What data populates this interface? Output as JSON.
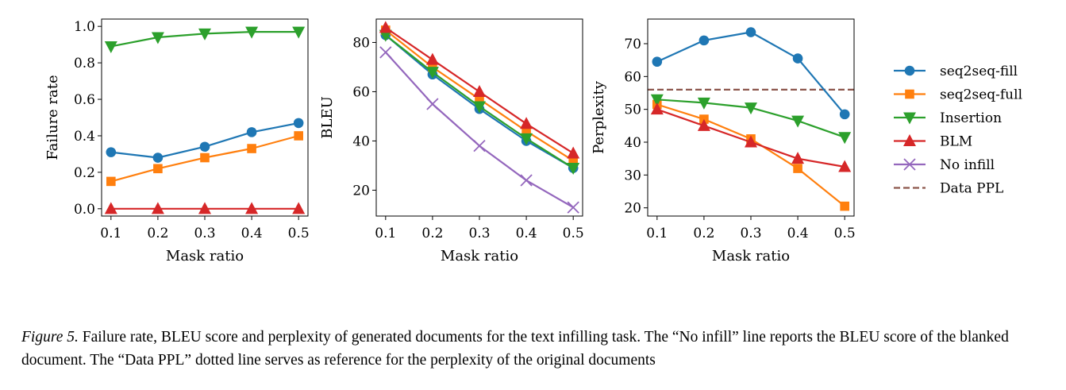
{
  "series_styles": {
    "seq2seq-fill": {
      "color": "#1f77b4",
      "marker": "circle",
      "dash": false
    },
    "seq2seq-full": {
      "color": "#ff7f0e",
      "marker": "square",
      "dash": false
    },
    "Insertion": {
      "color": "#2ca02c",
      "marker": "triangle-down",
      "dash": false
    },
    "BLM": {
      "color": "#d62728",
      "marker": "triangle-up",
      "dash": false
    },
    "No infill": {
      "color": "#9467bd",
      "marker": "x",
      "dash": false
    },
    "Data PPL": {
      "color": "#8c564b",
      "marker": "none",
      "dash": true
    }
  },
  "legend": {
    "placement": "right, outside plots",
    "entries": [
      "seq2seq-fill",
      "seq2seq-full",
      "Insertion",
      "BLM",
      "No infill",
      "Data PPL"
    ]
  },
  "chart_data": [
    {
      "type": "line",
      "xlabel": "Mask ratio",
      "ylabel": "Failure rate",
      "x": [
        0.1,
        0.2,
        0.3,
        0.4,
        0.5
      ],
      "xticks": [
        "0.1",
        "0.2",
        "0.3",
        "0.4",
        "0.5"
      ],
      "xlim": [
        0.08,
        0.52
      ],
      "ylim": [
        -0.04,
        1.04
      ],
      "yticks": [
        0.0,
        0.2,
        0.4,
        0.6,
        0.8,
        1.0
      ],
      "ytick_labels": [
        "0.0",
        "0.2",
        "0.4",
        "0.6",
        "0.8",
        "1.0"
      ],
      "grid": false,
      "series": [
        {
          "name": "seq2seq-fill",
          "values": [
            0.31,
            0.28,
            0.34,
            0.42,
            0.47
          ]
        },
        {
          "name": "seq2seq-full",
          "values": [
            0.15,
            0.22,
            0.28,
            0.33,
            0.4
          ]
        },
        {
          "name": "Insertion",
          "values": [
            0.89,
            0.94,
            0.96,
            0.97,
            0.97
          ]
        },
        {
          "name": "BLM",
          "values": [
            0.0,
            0.0,
            0.0,
            0.0,
            0.0
          ]
        }
      ]
    },
    {
      "type": "line",
      "xlabel": "Mask ratio",
      "ylabel": "BLEU",
      "x": [
        0.1,
        0.2,
        0.3,
        0.4,
        0.5
      ],
      "xticks": [
        "0.1",
        "0.2",
        "0.3",
        "0.4",
        "0.5"
      ],
      "xlim": [
        0.08,
        0.52
      ],
      "ylim": [
        9.5,
        89.5
      ],
      "yticks": [
        20,
        40,
        60,
        80
      ],
      "ytick_labels": [
        "20",
        "40",
        "60",
        "80"
      ],
      "grid": false,
      "series": [
        {
          "name": "seq2seq-fill",
          "values": [
            83,
            67,
            53,
            40,
            29
          ]
        },
        {
          "name": "seq2seq-full",
          "values": [
            85,
            70,
            57,
            44,
            32
          ]
        },
        {
          "name": "Insertion",
          "values": [
            83,
            68,
            54,
            41,
            29
          ]
        },
        {
          "name": "BLM",
          "values": [
            86,
            73,
            60,
            47,
            35
          ]
        },
        {
          "name": "No infill",
          "values": [
            76,
            55,
            38,
            24,
            13
          ]
        }
      ]
    },
    {
      "type": "line",
      "xlabel": "Mask ratio",
      "ylabel": "Perplexity",
      "x": [
        0.1,
        0.2,
        0.3,
        0.4,
        0.5
      ],
      "xticks": [
        "0.1",
        "0.2",
        "0.3",
        "0.4",
        "0.5"
      ],
      "xlim": [
        0.08,
        0.52
      ],
      "ylim": [
        17.5,
        77.5
      ],
      "yticks": [
        20,
        30,
        40,
        50,
        60,
        70
      ],
      "ytick_labels": [
        "20",
        "30",
        "40",
        "50",
        "60",
        "70"
      ],
      "grid": false,
      "series": [
        {
          "name": "seq2seq-fill",
          "values": [
            64.5,
            71,
            73.5,
            65.5,
            48.5
          ]
        },
        {
          "name": "seq2seq-full",
          "values": [
            51.5,
            47,
            41,
            32,
            20.5
          ]
        },
        {
          "name": "Insertion",
          "values": [
            53,
            52,
            50.5,
            46.5,
            41.5
          ]
        },
        {
          "name": "BLM",
          "values": [
            50,
            45,
            40,
            35,
            32.5
          ]
        }
      ],
      "hlines": [
        {
          "name": "Data PPL",
          "value": 56
        }
      ]
    }
  ],
  "caption": {
    "lead": "Figure 5.",
    "text": " Failure rate, BLEU score and perplexity of generated documents for the text infilling task. The “No infill” line reports the BLEU score of the blanked document. The “Data PPL” dotted line serves as reference for the perplexity of the original documents"
  }
}
